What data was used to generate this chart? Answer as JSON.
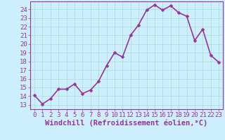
{
  "x": [
    0,
    1,
    2,
    3,
    4,
    5,
    6,
    7,
    8,
    9,
    10,
    11,
    12,
    13,
    14,
    15,
    16,
    17,
    18,
    19,
    20,
    21,
    22,
    23
  ],
  "y": [
    14.1,
    13.1,
    13.7,
    14.8,
    14.8,
    15.4,
    14.3,
    14.7,
    15.7,
    17.5,
    19.0,
    18.5,
    21.0,
    22.2,
    23.9,
    24.5,
    23.9,
    24.4,
    23.6,
    23.2,
    20.4,
    21.7,
    18.7,
    17.9
  ],
  "line_color": "#993399",
  "marker_color": "#993399",
  "bg_color": "#cceeff",
  "grid_color": "#aaddcc",
  "xlabel": "Windchill (Refroidissement éolien,°C)",
  "yticks": [
    13,
    14,
    15,
    16,
    17,
    18,
    19,
    20,
    21,
    22,
    23,
    24
  ],
  "xticks": [
    0,
    1,
    2,
    3,
    4,
    5,
    6,
    7,
    8,
    9,
    10,
    11,
    12,
    13,
    14,
    15,
    16,
    17,
    18,
    19,
    20,
    21,
    22,
    23
  ],
  "ylim": [
    12.5,
    24.9
  ],
  "xlim": [
    -0.5,
    23.5
  ],
  "xlabel_fontsize": 7.5,
  "tick_fontsize": 6.5,
  "line_width": 1.2,
  "marker_size": 2.5
}
